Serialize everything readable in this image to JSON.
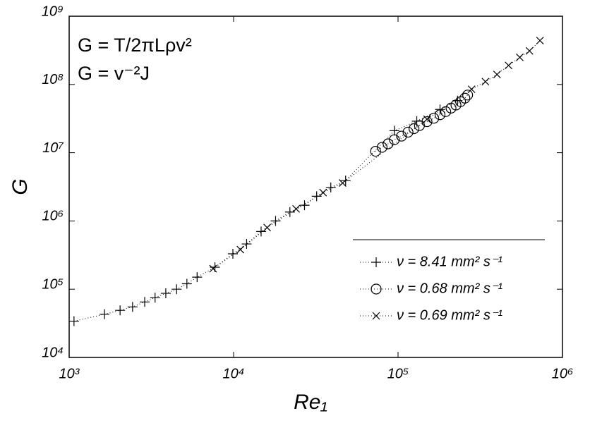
{
  "chart_data": {
    "type": "scatter",
    "xlabel": "Re₁",
    "ylabel": "G",
    "annotations": [
      "G = T/2πLρv²",
      "G = v⁻²J"
    ],
    "xlog": true,
    "ylog": true,
    "xlim": [
      1000,
      1000000
    ],
    "ylim": [
      10000,
      1000000000
    ],
    "xticks": [
      {
        "value": 1000,
        "label": "10³"
      },
      {
        "value": 10000,
        "label": "10⁴"
      },
      {
        "value": 100000,
        "label": "10⁵"
      },
      {
        "value": 1000000,
        "label": "10⁶"
      }
    ],
    "yticks": [
      {
        "value": 10000,
        "label": "10⁴"
      },
      {
        "value": 100000,
        "label": "10⁵"
      },
      {
        "value": 1000000,
        "label": "10⁶"
      },
      {
        "value": 10000000,
        "label": "10⁷"
      },
      {
        "value": 100000000,
        "label": "10⁸"
      },
      {
        "value": 1000000000,
        "label": "10⁹"
      }
    ],
    "legend": "lower right",
    "series": [
      {
        "name": "ν = 8.41 mm² s⁻¹",
        "color": "#000000",
        "marker": "+",
        "x": [
          1070,
          1640,
          2040,
          2430,
          2880,
          3330,
          3870,
          4500,
          5200,
          6000,
          7700,
          9900,
          12000,
          14700,
          18000,
          22000,
          27000,
          32000,
          39000,
          48000,
          95000,
          130000,
          180000,
          230000
        ],
        "values": [
          34000,
          43000,
          49000,
          55000,
          65000,
          75000,
          87000,
          100000,
          120000,
          150000,
          210000,
          330000,
          460000,
          700000,
          1000000,
          1350000,
          1700000,
          2300000,
          3100000,
          3900000,
          21000000,
          29000000,
          43000000,
          58000000
        ]
      },
      {
        "name": "ν = 0.68 mm² s⁻¹",
        "color": "#000000",
        "marker": "o",
        "x": [
          73000,
          80000,
          87000,
          95000,
          105000,
          115000,
          125000,
          135000,
          150000,
          165000,
          180000,
          195000,
          210000,
          225000,
          240000,
          255000,
          265000
        ],
        "values": [
          10500000,
          12000000,
          13500000,
          15500000,
          17500000,
          20000000,
          22500000,
          25000000,
          28500000,
          32000000,
          36000000,
          40000000,
          45000000,
          50000000,
          56000000,
          63000000,
          70000000
        ]
      },
      {
        "name": "ν = 0.69 mm² s⁻¹",
        "color": "#000000",
        "marker": "x",
        "x": [
          7500,
          11000,
          16000,
          24000,
          35000,
          46000,
          150000,
          280000,
          340000,
          400000,
          470000,
          550000,
          630000,
          730000
        ],
        "values": [
          200000,
          380000,
          800000,
          1500000,
          2600000,
          3600000,
          31000000,
          85000000,
          110000000,
          140000000,
          190000000,
          250000000,
          310000000,
          440000000
        ]
      }
    ]
  }
}
